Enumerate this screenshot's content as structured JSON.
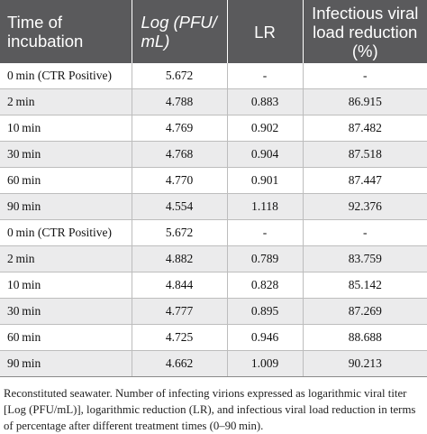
{
  "table": {
    "headers": [
      "Time of incubation",
      "Log (PFU/ mL)",
      "LR",
      "Infectious viral load reduction (%)"
    ],
    "rows": [
      [
        "0 min (CTR Positive)",
        "5.672",
        "-",
        "-"
      ],
      [
        "2 min",
        "4.788",
        "0.883",
        "86.915"
      ],
      [
        "10 min",
        "4.769",
        "0.902",
        "87.482"
      ],
      [
        "30 min",
        "4.768",
        "0.904",
        "87.518"
      ],
      [
        "60 min",
        "4.770",
        "0.901",
        "87.447"
      ],
      [
        "90 min",
        "4.554",
        "1.118",
        "92.376"
      ],
      [
        "0 min (CTR Positive)",
        "5.672",
        "-",
        "-"
      ],
      [
        "2 min",
        "4.882",
        "0.789",
        "83.759"
      ],
      [
        "10 min",
        "4.844",
        "0.828",
        "85.142"
      ],
      [
        "30 min",
        "4.777",
        "0.895",
        "87.269"
      ],
      [
        "60 min",
        "4.725",
        "0.946",
        "88.688"
      ],
      [
        "90 min",
        "4.662",
        "1.009",
        "90.213"
      ]
    ]
  },
  "footnote": "Reconstituted seawater. Number of infecting virions expressed as logarithmic viral titer [Log (PFU/mL)], logarithmic reduction (LR), and infectious viral load reduction in terms of percentage after different treatment times (0–90 min).",
  "colors": {
    "header_bg": "#5a5a5c",
    "header_text": "#ffffff",
    "stripe": "#ebebec"
  }
}
